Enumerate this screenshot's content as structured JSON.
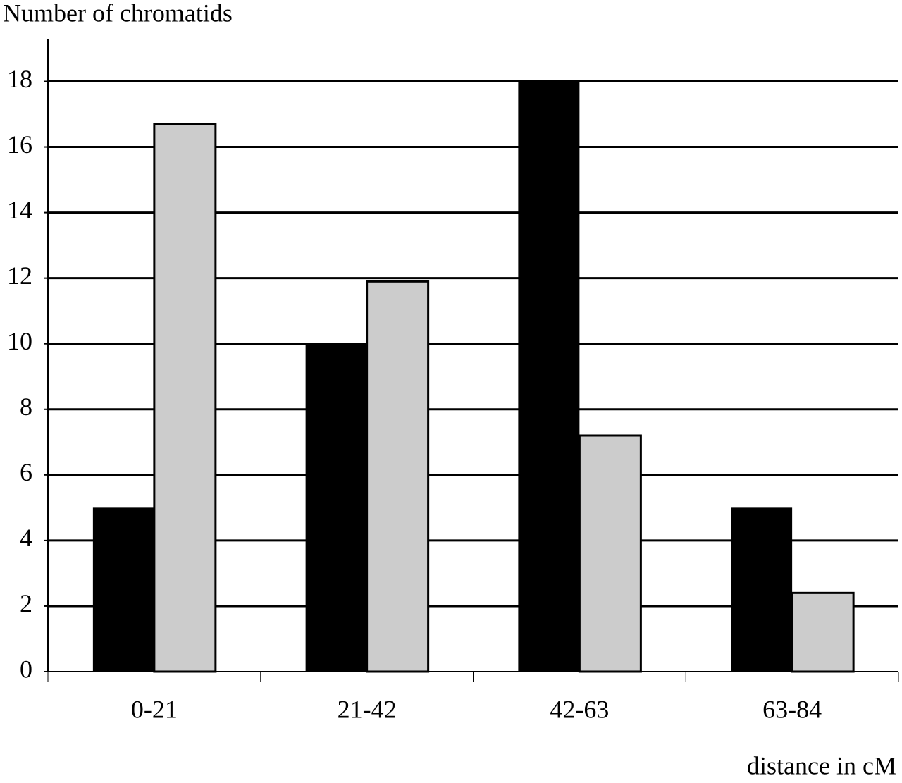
{
  "chart_data": {
    "type": "bar",
    "y_label": "Number of chromatids",
    "x_label": "distance in cM",
    "categories": [
      "0-21",
      "21-42",
      "42-63",
      "63-84"
    ],
    "series": [
      {
        "color": "#000000",
        "values": [
          5,
          10,
          18,
          5
        ]
      },
      {
        "color": "#cccccc",
        "values": [
          16.7,
          11.9,
          7.2,
          2.4
        ]
      }
    ],
    "ylim": [
      0,
      19.3
    ],
    "yticks": [
      0,
      2,
      4,
      6,
      8,
      10,
      12,
      14,
      16,
      18
    ],
    "grid": true
  }
}
